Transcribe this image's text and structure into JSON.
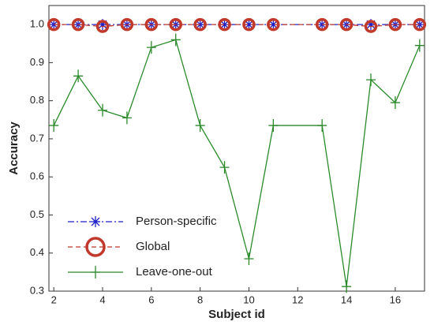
{
  "chart_data": {
    "type": "line",
    "x": [
      2,
      3,
      4,
      5,
      6,
      7,
      8,
      9,
      10,
      11,
      13,
      14,
      15,
      16,
      17
    ],
    "series": [
      {
        "name": "Person-specific",
        "color": "#1f1fc8",
        "marker": "asterisk",
        "dash": "dashdot",
        "values": [
          1.0,
          1.0,
          1.0,
          1.0,
          1.0,
          1.0,
          1.0,
          1.0,
          1.0,
          1.0,
          1.0,
          1.0,
          1.0,
          1.0,
          1.0
        ]
      },
      {
        "name": "Global",
        "color": "#c0392b",
        "marker": "circle",
        "dash": "dashed",
        "values": [
          1.0,
          1.0,
          0.995,
          1.0,
          1.0,
          1.0,
          1.0,
          1.0,
          1.0,
          1.0,
          1.0,
          1.0,
          0.995,
          1.0,
          1.0
        ]
      },
      {
        "name": "Leave-one-out",
        "color": "#2a8a2a",
        "marker": "plus",
        "dash": "solid",
        "values": [
          0.735,
          0.865,
          0.775,
          0.755,
          0.94,
          0.96,
          0.735,
          0.625,
          0.385,
          0.735,
          0.735,
          0.312,
          0.855,
          0.795,
          0.945
        ]
      }
    ],
    "xlabel": "Subject id",
    "ylabel": "Accuracy",
    "xlim": [
      1.8,
      17.2
    ],
    "ylim": [
      0.3,
      1.05
    ],
    "xticks": [
      2,
      4,
      6,
      8,
      10,
      12,
      14,
      16
    ],
    "yticks": [
      0.3,
      0.4,
      0.5,
      0.6,
      0.7,
      0.8,
      0.9,
      {
        "value": 1.0,
        "label": "1.0"
      }
    ],
    "legend": "lower left"
  }
}
